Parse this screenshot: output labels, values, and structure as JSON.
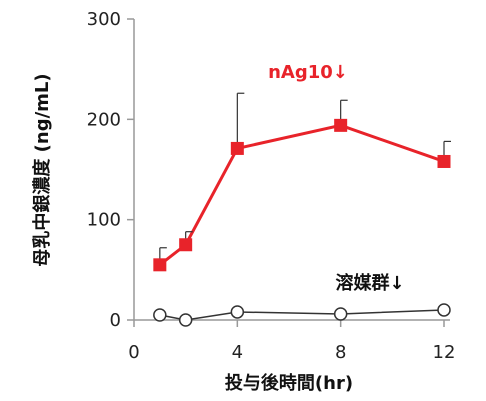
{
  "chart_data": {
    "type": "line",
    "xlabel": "投与後時間(hr)",
    "ylabel": "母乳中銀濃度 (ng/mL)",
    "xlim": [
      0,
      12
    ],
    "ylim": [
      0,
      300
    ],
    "x_ticks": [
      "0",
      "4",
      "8",
      "12"
    ],
    "y_ticks": [
      "0",
      "100",
      "200",
      "300"
    ],
    "grid": false,
    "series": [
      {
        "name": "nAg10↓",
        "color": "#e8232a",
        "marker": "filled-square",
        "x": [
          1,
          2,
          4,
          8,
          12
        ],
        "y": [
          55,
          75,
          171,
          194,
          158
        ],
        "error_upper": [
          17,
          13,
          55,
          25,
          20
        ]
      },
      {
        "name": "溶媒群↓",
        "color": "#333333",
        "marker": "open-circle",
        "x": [
          1,
          2,
          4,
          8,
          12
        ],
        "y": [
          5,
          0,
          8,
          6,
          10
        ],
        "error_upper": [
          0,
          0,
          0,
          0,
          0
        ]
      }
    ]
  }
}
